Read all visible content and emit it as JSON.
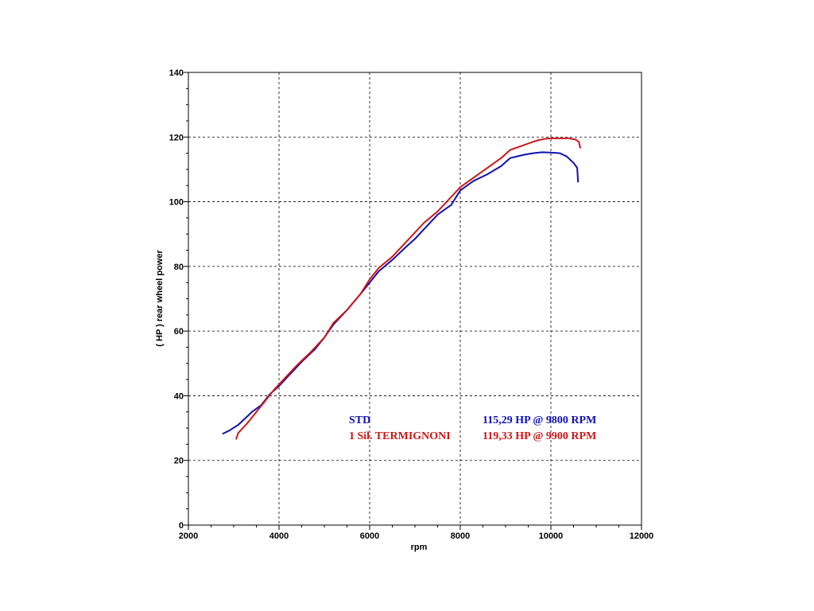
{
  "chart_data": {
    "type": "line",
    "title": "",
    "xlabel": "rpm",
    "ylabel": "( HP )   rear  wheel  power",
    "xlim": [
      2000,
      12000
    ],
    "ylim": [
      0,
      140
    ],
    "x_ticks": [
      2000,
      4000,
      6000,
      8000,
      10000,
      12000
    ],
    "y_ticks": [
      0,
      20,
      40,
      60,
      80,
      100,
      120,
      140
    ],
    "grid": true,
    "series": [
      {
        "name": "STD",
        "color": "#1010b0",
        "summary": "115,29 HP @ 9800 RPM",
        "points": [
          [
            2750,
            28.2
          ],
          [
            2900,
            29.2
          ],
          [
            3100,
            31.0
          ],
          [
            3300,
            33.6
          ],
          [
            3400,
            35.0
          ],
          [
            3600,
            37.0
          ],
          [
            3800,
            40.5
          ],
          [
            4000,
            43.0
          ],
          [
            4200,
            46.0
          ],
          [
            4500,
            50.5
          ],
          [
            4800,
            54.5
          ],
          [
            5000,
            58.0
          ],
          [
            5200,
            62.0
          ],
          [
            5500,
            66.5
          ],
          [
            5800,
            71.5
          ],
          [
            6000,
            75.0
          ],
          [
            6200,
            78.5
          ],
          [
            6500,
            82.0
          ],
          [
            6800,
            86.0
          ],
          [
            7000,
            88.5
          ],
          [
            7200,
            91.5
          ],
          [
            7500,
            96.0
          ],
          [
            7800,
            99.0
          ],
          [
            8000,
            103.5
          ],
          [
            8300,
            106.5
          ],
          [
            8600,
            108.5
          ],
          [
            8900,
            111.0
          ],
          [
            9100,
            113.5
          ],
          [
            9400,
            114.5
          ],
          [
            9600,
            115.0
          ],
          [
            9800,
            115.3
          ],
          [
            10000,
            115.2
          ],
          [
            10200,
            115.0
          ],
          [
            10350,
            114.0
          ],
          [
            10500,
            112.0
          ],
          [
            10580,
            110.5
          ],
          [
            10600,
            106.0
          ]
        ]
      },
      {
        "name": "1 Sil. TERMIGNONI",
        "color": "#cc1818",
        "summary": "119,33 HP @ 9900 RPM",
        "points": [
          [
            3050,
            26.5
          ],
          [
            3100,
            28.5
          ],
          [
            3300,
            31.5
          ],
          [
            3500,
            35.0
          ],
          [
            3700,
            38.5
          ],
          [
            3900,
            42.0
          ],
          [
            4100,
            45.0
          ],
          [
            4400,
            49.5
          ],
          [
            4700,
            53.5
          ],
          [
            5000,
            58.0
          ],
          [
            5200,
            62.5
          ],
          [
            5500,
            66.5
          ],
          [
            5800,
            71.5
          ],
          [
            6000,
            76.0
          ],
          [
            6200,
            79.5
          ],
          [
            6500,
            83.0
          ],
          [
            6800,
            87.5
          ],
          [
            7000,
            90.5
          ],
          [
            7200,
            93.5
          ],
          [
            7500,
            97.0
          ],
          [
            7800,
            101.5
          ],
          [
            8000,
            104.5
          ],
          [
            8300,
            107.5
          ],
          [
            8600,
            110.5
          ],
          [
            8900,
            113.5
          ],
          [
            9100,
            116.0
          ],
          [
            9400,
            117.5
          ],
          [
            9700,
            119.0
          ],
          [
            9900,
            119.5
          ],
          [
            10000,
            119.6
          ],
          [
            10200,
            119.6
          ],
          [
            10400,
            119.6
          ],
          [
            10550,
            119.2
          ],
          [
            10620,
            118.5
          ],
          [
            10650,
            116.5
          ]
        ]
      }
    ],
    "legend_position": "bottom-right"
  }
}
